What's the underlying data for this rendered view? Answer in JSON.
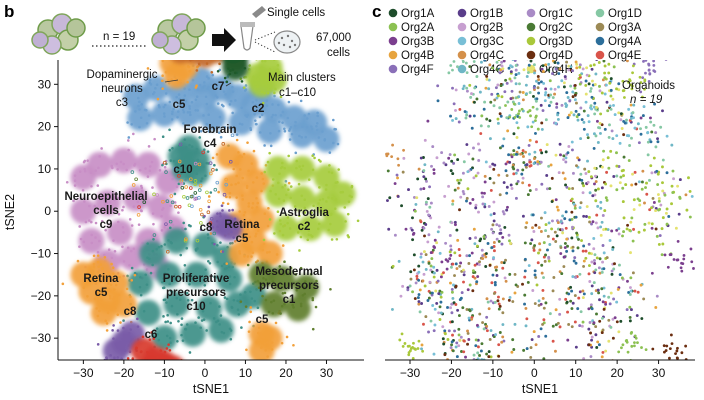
{
  "panel_b": {
    "letter": "b",
    "header": {
      "n_text": "n = 19",
      "single_cells": "Single cells",
      "cells_count": "67,000",
      "cells_word": "cells",
      "main_clusters_line1": "Main clusters",
      "main_clusters_line2": "c1–c10"
    }
  },
  "panel_c": {
    "letter": "c",
    "organoids_line1": "Organoids",
    "organoids_line2": "n = 19"
  },
  "chart_data": [
    {
      "type": "scatter",
      "panel": "b",
      "xlabel": "tSNE1",
      "ylabel": "tSNE2",
      "xlim": [
        -37,
        40
      ],
      "ylim": [
        -38,
        40
      ],
      "xticks": [
        -30,
        -20,
        -10,
        0,
        10,
        20,
        30
      ],
      "yticks": [
        -30,
        -20,
        -10,
        0,
        10,
        20,
        30
      ],
      "grid": false,
      "clusters": [
        {
          "id": "c4",
          "label": [
            "Forebrain",
            "c4"
          ],
          "color": "#6b9fcf",
          "points": [
            [
              -17,
              27
            ],
            [
              -12,
              29
            ],
            [
              -6,
              28
            ],
            [
              0,
              27
            ],
            [
              4,
              29
            ],
            [
              8,
              27
            ],
            [
              12,
              25
            ],
            [
              17,
              24
            ],
            [
              22,
              22
            ],
            [
              27,
              21
            ],
            [
              30,
              17
            ],
            [
              -16,
              22
            ],
            [
              -10,
              23
            ],
            [
              -4,
              23
            ],
            [
              2,
              22
            ],
            [
              9,
              21
            ],
            [
              16,
              19
            ],
            [
              24,
              18
            ],
            [
              -1,
              31
            ],
            [
              14,
              29
            ]
          ]
        },
        {
          "id": "c9",
          "label": [
            "Neuroepithelial",
            "cells",
            "c9"
          ],
          "color": "#c88ec6",
          "points": [
            [
              -30,
              8
            ],
            [
              -26,
              11
            ],
            [
              -20,
              12
            ],
            [
              -14,
              11
            ],
            [
              -9,
              7
            ],
            [
              -30,
              0
            ],
            [
              -24,
              2
            ],
            [
              -17,
              3
            ],
            [
              -11,
              1
            ],
            [
              -28,
              -7
            ],
            [
              -21,
              -5
            ],
            [
              -14,
              -7
            ],
            [
              -8,
              -4
            ],
            [
              -24,
              -12
            ],
            [
              -18,
              -11
            ],
            [
              -12,
              -13
            ]
          ]
        },
        {
          "id": "c10",
          "label": [
            "Proliferative",
            "precursors",
            "c10"
          ],
          "color": "#3e8f87",
          "points": [
            [
              -13,
              -10
            ],
            [
              -7,
              -7
            ],
            [
              0,
              -8
            ],
            [
              5,
              -11
            ],
            [
              -16,
              -17
            ],
            [
              -9,
              -15
            ],
            [
              -2,
              -15
            ],
            [
              6,
              -16
            ],
            [
              -14,
              -24
            ],
            [
              -7,
              -22
            ],
            [
              1,
              -23
            ],
            [
              8,
              -22
            ],
            [
              -10,
              -30
            ],
            [
              -3,
              -29
            ],
            [
              4,
              -28
            ],
            [
              12,
              -20
            ]
          ]
        },
        {
          "id": "c10",
          "label": [
            "c10"
          ],
          "color": "#3e8f87",
          "points": [
            [
              -6,
              13
            ],
            [
              -4,
              15
            ],
            [
              -2,
              12
            ],
            [
              -5,
              10
            ],
            [
              -2,
              9
            ]
          ]
        },
        {
          "id": "c5",
          "label": [
            "Retina",
            "c5"
          ],
          "color": "#f2a03a",
          "points": [
            [
              6,
              13
            ],
            [
              10,
              11
            ],
            [
              13,
              7
            ],
            [
              7,
              6
            ],
            [
              11,
              2
            ],
            [
              14,
              -2
            ],
            [
              8,
              -3
            ],
            [
              12,
              -7
            ],
            [
              16,
              -10
            ],
            [
              9,
              -10
            ]
          ]
        },
        {
          "id": "c5",
          "label": [
            "Retina",
            "c5"
          ],
          "color": "#f2a03a",
          "points": [
            [
              -30,
              -15
            ],
            [
              -26,
              -14
            ],
            [
              -22,
              -17
            ],
            [
              -28,
              -19
            ],
            [
              -24,
              -21
            ],
            [
              -20,
              -22
            ],
            [
              -25,
              -24
            ]
          ]
        },
        {
          "id": "c5",
          "label": [
            "c5"
          ],
          "color": "#f2a03a",
          "points": [
            [
              -7,
              32
            ],
            [
              -5,
              34
            ],
            [
              -8,
              35
            ]
          ]
        },
        {
          "id": "c5",
          "label": [
            "c5"
          ],
          "color": "#f2a03a",
          "points": [
            [
              14,
              -29
            ],
            [
              16,
              -30
            ],
            [
              14,
              -33
            ]
          ]
        },
        {
          "id": "c2",
          "label": [
            "Astroglia",
            "c2"
          ],
          "color": "#a6cc3e",
          "points": [
            [
              18,
              10
            ],
            [
              24,
              10
            ],
            [
              30,
              8
            ],
            [
              34,
              4
            ],
            [
              18,
              4
            ],
            [
              24,
              3
            ],
            [
              30,
              2
            ],
            [
              20,
              -4
            ],
            [
              26,
              -4
            ],
            [
              32,
              -3
            ]
          ]
        },
        {
          "id": "c2",
          "label": [
            "c2"
          ],
          "color": "#a6cc3e",
          "points": [
            [
              13,
              32
            ],
            [
              16,
              34
            ],
            [
              17,
              31
            ],
            [
              14,
              30
            ]
          ]
        },
        {
          "id": "c1",
          "label": [
            "Mesodermal",
            "precursors",
            "c1"
          ],
          "color": "#5f7e2e",
          "points": [
            [
              14,
              -15
            ],
            [
              19,
              -16
            ],
            [
              25,
              -18
            ],
            [
              17,
              -22
            ],
            [
              23,
              -23
            ]
          ]
        },
        {
          "id": "c3",
          "label": [
            "Dopaminergic",
            "neurons",
            "c3"
          ],
          "color": "#c36a2a",
          "points": [
            [
              -6,
              38
            ],
            [
              -3,
              38
            ],
            [
              0,
              37
            ],
            [
              3,
              38
            ]
          ]
        },
        {
          "id": "c7",
          "label": [
            "c7"
          ],
          "color": "#1f5a2a",
          "points": [
            [
              7,
              38
            ],
            [
              7.5,
              36
            ],
            [
              7.5,
              34
            ]
          ]
        },
        {
          "id": "c8",
          "label": [
            "c8"
          ],
          "color": "#7a5ca8",
          "points": [
            [
              -18,
              -29
            ],
            [
              -20,
              -31
            ],
            [
              -22,
              -33
            ]
          ]
        },
        {
          "id": "c8",
          "label": [
            "c8"
          ],
          "color": "#7a5ca8",
          "points": [
            [
              4,
              -3
            ],
            [
              6,
              -4
            ]
          ]
        },
        {
          "id": "c6",
          "label": [
            "c6"
          ],
          "color": "#d83a2e",
          "points": [
            [
              -15,
              -33
            ],
            [
              -12,
              -35
            ],
            [
              -10,
              -36
            ],
            [
              -8,
              -37
            ],
            [
              -13,
              -37
            ]
          ]
        }
      ]
    },
    {
      "type": "scatter",
      "panel": "c",
      "xlabel": "tSNE1",
      "ylabel": "",
      "xlim": [
        -37,
        40
      ],
      "ylim": [
        -38,
        40
      ],
      "xticks": [
        -30,
        -20,
        -10,
        0,
        10,
        20,
        30
      ],
      "grid": false,
      "legend_placement": "top",
      "series": [
        {
          "name": "Org1A",
          "color": "#1e4d2b"
        },
        {
          "name": "Org1B",
          "color": "#5a3d8a"
        },
        {
          "name": "Org1C",
          "color": "#a98bc6"
        },
        {
          "name": "Org1D",
          "color": "#86c8a4"
        },
        {
          "name": "Org2A",
          "color": "#8cc152"
        },
        {
          "name": "Org2B",
          "color": "#c79fd0"
        },
        {
          "name": "Org2C",
          "color": "#4a7a34"
        },
        {
          "name": "Org3A",
          "color": "#9c8a55"
        },
        {
          "name": "Org3B",
          "color": "#7b3f8e"
        },
        {
          "name": "Org3C",
          "color": "#78bfd6"
        },
        {
          "name": "Org3D",
          "color": "#a9c83a"
        },
        {
          "name": "Org4A",
          "color": "#2c6e9a"
        },
        {
          "name": "Org4B",
          "color": "#e7a43f"
        },
        {
          "name": "Org4C",
          "color": "#d4904a"
        },
        {
          "name": "Org4D",
          "color": "#6b2e10"
        },
        {
          "name": "Org4E",
          "color": "#d9544a"
        },
        {
          "name": "Org4F",
          "color": "#8a6fb8"
        },
        {
          "name": "Org4G",
          "color": "#6fb7c6"
        },
        {
          "name": "Org4H",
          "color": "#e4e26f"
        }
      ]
    }
  ]
}
